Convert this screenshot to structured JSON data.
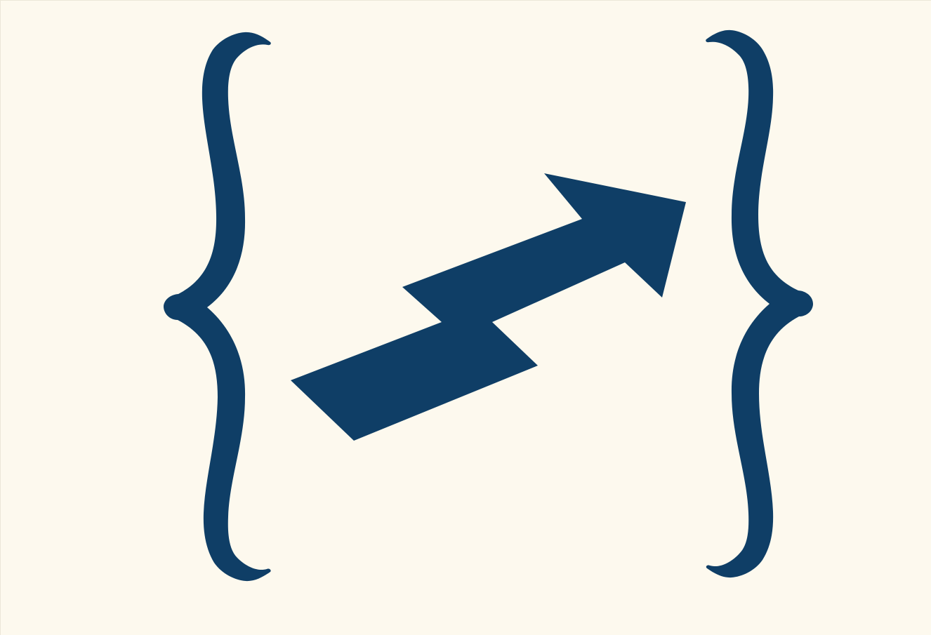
{
  "logo": {
    "icon": "curly-braces-with-lightning-arrow",
    "background_color": "#fdf9ee",
    "mark_color": "#0f3e66"
  }
}
